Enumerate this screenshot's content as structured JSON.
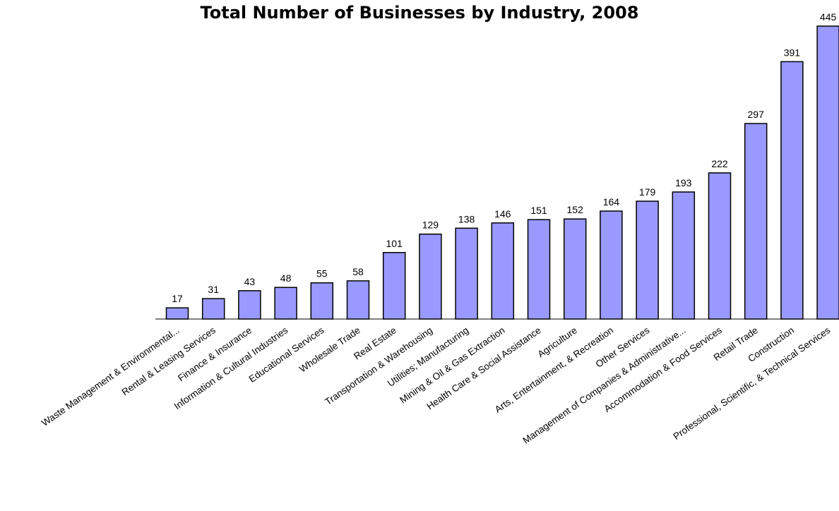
{
  "chart_data": {
    "type": "bar",
    "title": "Total Number of Businesses by Industry, 2008",
    "xlabel": "",
    "ylabel": "",
    "categories": [
      "Waste Management & Environmental...",
      "Rental & Leasing Services",
      "Finance & Insurance",
      "Information & Cultural Industries",
      "Educational Services",
      "Wholesale Trade",
      "Real Estate",
      "Transportation & Warehousing",
      "Utilities; Manufacturing",
      "Mining & Oil & Gas Extraction",
      "Health Care & Social Assistance",
      "Agriculture",
      "Arts, Entertainment, & Recreation",
      "Other Services",
      "Management of Companies & Administrative...",
      "Accommodation & Food Services",
      "Retail Trade",
      "Construction",
      "Professional, Scientific, & Technical Services"
    ],
    "values": [
      17,
      31,
      43,
      48,
      55,
      58,
      101,
      129,
      138,
      146,
      151,
      152,
      164,
      179,
      193,
      222,
      297,
      391,
      445
    ],
    "ylim": [
      0,
      445
    ],
    "grid": false,
    "legend": "none",
    "colors": {
      "bar_fill": "#9999ff",
      "bar_stroke": "#000000"
    }
  }
}
